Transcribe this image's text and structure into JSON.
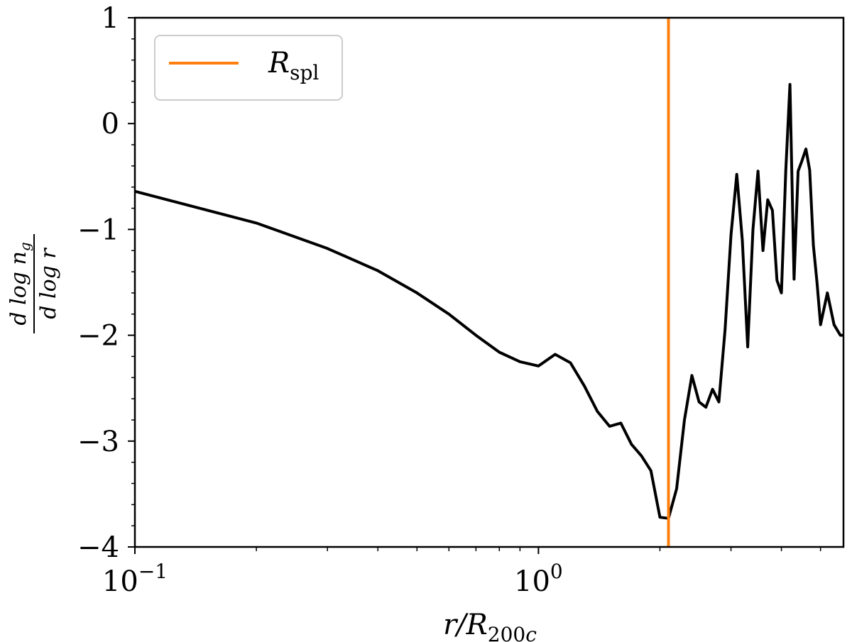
{
  "chart_data": {
    "type": "line",
    "xlabel": "r/R200c",
    "ylabel": "d log n_g / d log r",
    "xscale": "log",
    "xlim": [
      0.1,
      5.7
    ],
    "ylim": [
      -4,
      1
    ],
    "grid": false,
    "legend_position": "top-left",
    "x_major_ticks": [
      {
        "value": 0.1,
        "base": "10",
        "exp": "−1"
      },
      {
        "value": 1,
        "base": "10",
        "exp": "0"
      }
    ],
    "y_ticks": [
      {
        "value": 1,
        "label": "1"
      },
      {
        "value": 0,
        "label": "0"
      },
      {
        "value": -1,
        "label": "−1"
      },
      {
        "value": -2,
        "label": "−2"
      },
      {
        "value": -3,
        "label": "−3"
      },
      {
        "value": -4,
        "label": "−4"
      }
    ],
    "legend": [
      {
        "label": "R",
        "subscript": "spl",
        "color": "#ff7f0e"
      }
    ],
    "vline": {
      "x": 2.1,
      "color": "#ff7f0e",
      "name": "R_spl"
    },
    "series": [
      {
        "color": "#000000",
        "x": [
          0.1,
          0.2,
          0.3,
          0.4,
          0.5,
          0.6,
          0.7,
          0.8,
          0.9,
          1.0,
          1.1,
          1.2,
          1.3,
          1.4,
          1.5,
          1.6,
          1.7,
          1.8,
          1.9,
          2.0,
          2.1,
          2.2,
          2.3,
          2.4,
          2.5,
          2.6,
          2.7,
          2.8,
          2.9,
          3.0,
          3.1,
          3.2,
          3.3,
          3.4,
          3.5,
          3.6,
          3.7,
          3.8,
          3.9,
          4.0,
          4.1,
          4.2,
          4.3,
          4.4,
          4.5,
          4.6,
          4.7,
          4.8,
          4.9,
          5.0,
          5.2,
          5.4,
          5.6,
          5.7
        ],
        "y": [
          -0.64,
          -0.94,
          -1.18,
          -1.39,
          -1.6,
          -1.8,
          -2.0,
          -2.16,
          -2.25,
          -2.29,
          -2.18,
          -2.26,
          -2.48,
          -2.72,
          -2.86,
          -2.83,
          -3.03,
          -3.14,
          -3.28,
          -3.72,
          -3.73,
          -3.45,
          -2.8,
          -2.38,
          -2.63,
          -2.68,
          -2.51,
          -2.63,
          -1.95,
          -1.05,
          -0.48,
          -1.1,
          -2.11,
          -1.0,
          -0.45,
          -1.2,
          -0.72,
          -0.82,
          -1.48,
          -1.6,
          -0.45,
          0.37,
          -1.47,
          -0.45,
          -0.35,
          -0.24,
          -0.44,
          -1.15,
          -1.5,
          -1.9,
          -1.6,
          -1.9,
          -2.0,
          -2.0
        ]
      }
    ]
  }
}
